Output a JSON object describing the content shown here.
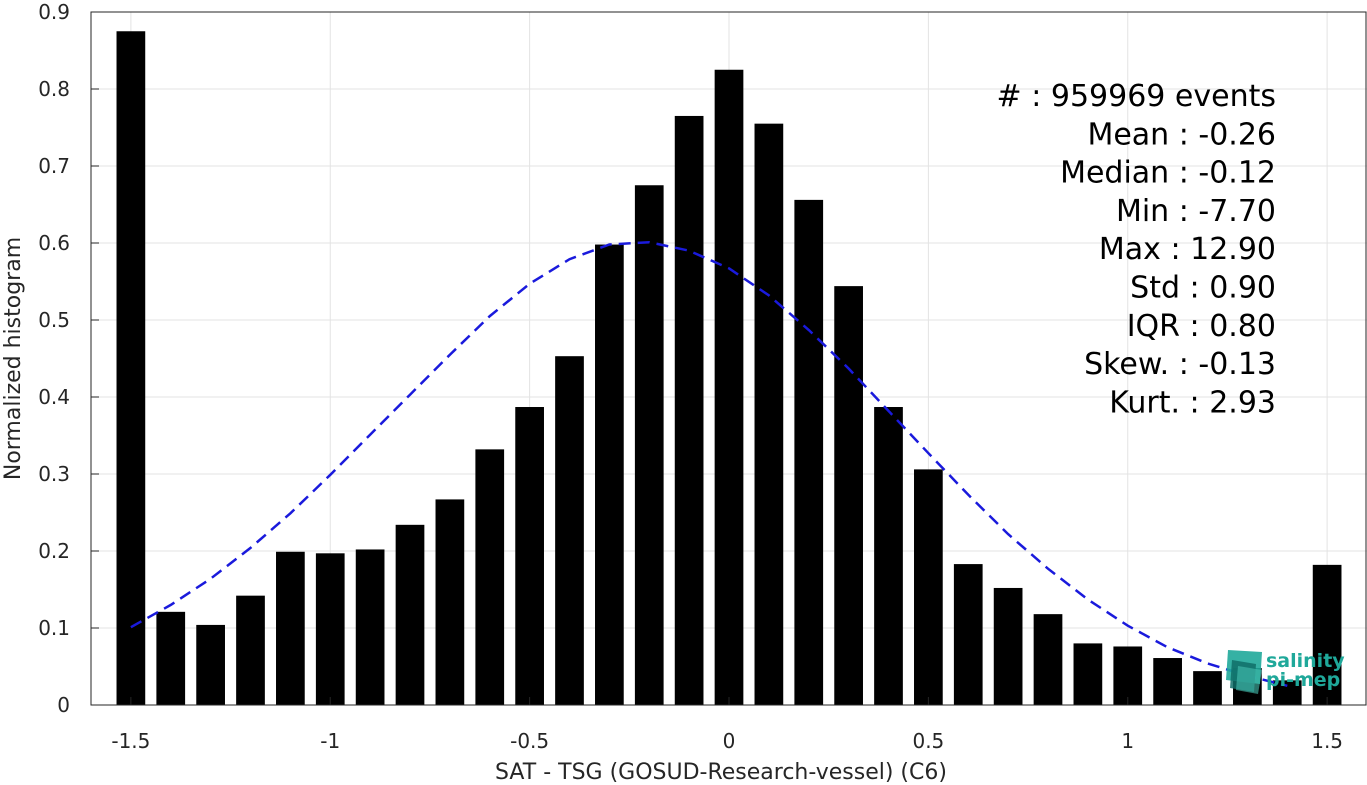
{
  "chart_data": {
    "type": "bar",
    "xlabel": "SAT - TSG (GOSUD-Research-vessel) (C6)",
    "ylabel": "Normalized histogram",
    "xlim": [
      -1.6,
      1.6
    ],
    "ylim": [
      0,
      0.9
    ],
    "xticks": [
      -1.5,
      -1,
      -0.5,
      0,
      0.5,
      1,
      1.5
    ],
    "xtick_labels": [
      "-1.5",
      "-1",
      "-0.5",
      "0",
      "0.5",
      "1",
      "1.5"
    ],
    "yticks": [
      0,
      0.1,
      0.2,
      0.3,
      0.4,
      0.5,
      0.6,
      0.7,
      0.8,
      0.9
    ],
    "ytick_labels": [
      "0",
      "0.1",
      "0.2",
      "0.3",
      "0.4",
      "0.5",
      "0.6",
      "0.7",
      "0.8",
      "0.9"
    ],
    "grid": true,
    "bar_color": "#000000",
    "bins": [
      -1.5,
      -1.4,
      -1.3,
      -1.2,
      -1.1,
      -1.0,
      -0.9,
      -0.8,
      -0.7,
      -0.6,
      -0.5,
      -0.4,
      -0.3,
      -0.2,
      -0.1,
      0.0,
      0.1,
      0.2,
      0.3,
      0.4,
      0.5,
      0.6,
      0.7,
      0.8,
      0.9,
      1.0,
      1.1,
      1.2,
      1.3,
      1.4,
      1.5
    ],
    "values": [
      0.875,
      0.121,
      0.104,
      0.142,
      0.199,
      0.197,
      0.202,
      0.234,
      0.267,
      0.332,
      0.387,
      0.453,
      0.598,
      0.675,
      0.765,
      0.825,
      0.755,
      0.656,
      0.544,
      0.387,
      0.306,
      0.183,
      0.152,
      0.118,
      0.08,
      0.076,
      0.061,
      0.044,
      0.048,
      0.032,
      0.182
    ],
    "fit_curve": {
      "style": "dashed",
      "color": "#1a1adc",
      "x": [
        -1.5,
        -1.4,
        -1.3,
        -1.2,
        -1.1,
        -1.0,
        -0.9,
        -0.8,
        -0.7,
        -0.6,
        -0.5,
        -0.4,
        -0.3,
        -0.2,
        -0.1,
        0.0,
        0.1,
        0.2,
        0.3,
        0.4,
        0.5,
        0.6,
        0.7,
        0.8,
        0.9,
        1.0,
        1.1,
        1.2,
        1.3,
        1.4
      ],
      "y": [
        0.101,
        0.13,
        0.164,
        0.204,
        0.249,
        0.299,
        0.351,
        0.403,
        0.455,
        0.505,
        0.547,
        0.579,
        0.598,
        0.601,
        0.59,
        0.567,
        0.532,
        0.487,
        0.437,
        0.382,
        0.327,
        0.273,
        0.222,
        0.177,
        0.137,
        0.103,
        0.075,
        0.054,
        0.038,
        0.025
      ]
    },
    "stats_lines": [
      "#  : 959969 events",
      "Mean : -0.26",
      "Median : -0.12",
      "Min : -7.70",
      "Max : 12.90",
      "Std : 0.90",
      "IQR : 0.80",
      "Skew. : -0.13",
      "Kurt. : 2.93"
    ]
  },
  "logo": {
    "line1": "salinity",
    "line2": "pi-mep",
    "color": "#1fa89a"
  }
}
